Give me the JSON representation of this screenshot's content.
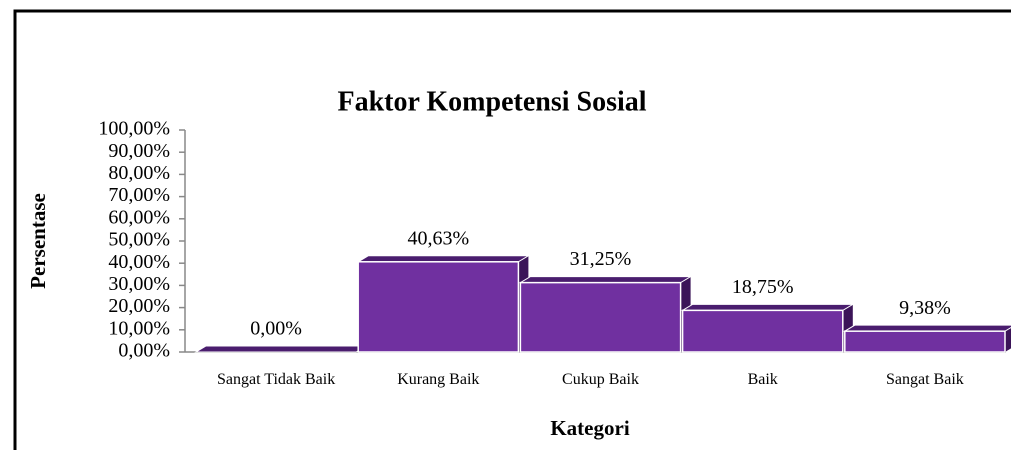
{
  "chart_data": {
    "type": "bar3d",
    "title": "Faktor Kompetensi Sosial",
    "x_label": "Kategori",
    "y_label": "Persentase",
    "categories": [
      "Sangat Tidak Baik",
      "Kurang Baik",
      "Cukup Baik",
      "Baik",
      "Sangat Baik"
    ],
    "values": [
      0,
      40.63,
      31.25,
      18.75,
      9.38
    ],
    "value_labels": [
      "0,00%",
      "40,63%",
      "31,25%",
      "18,75%",
      "9,38%"
    ],
    "color": "#7030a0",
    "ylim": [
      0,
      100
    ],
    "yticks": [
      {
        "value": 0,
        "label": "0,00%"
      },
      {
        "value": 10,
        "label": "10,00%"
      },
      {
        "value": 20,
        "label": "20,00%"
      },
      {
        "value": 30,
        "label": "30,00%"
      },
      {
        "value": 40,
        "label": "40,00%"
      },
      {
        "value": 50,
        "label": "50,00%"
      },
      {
        "value": 60,
        "label": "60,00%"
      },
      {
        "value": 70,
        "label": "70,00%"
      },
      {
        "value": 80,
        "label": "80,00%"
      },
      {
        "value": 90,
        "label": "90,00%"
      },
      {
        "value": 100,
        "label": "100,00%"
      }
    ]
  }
}
